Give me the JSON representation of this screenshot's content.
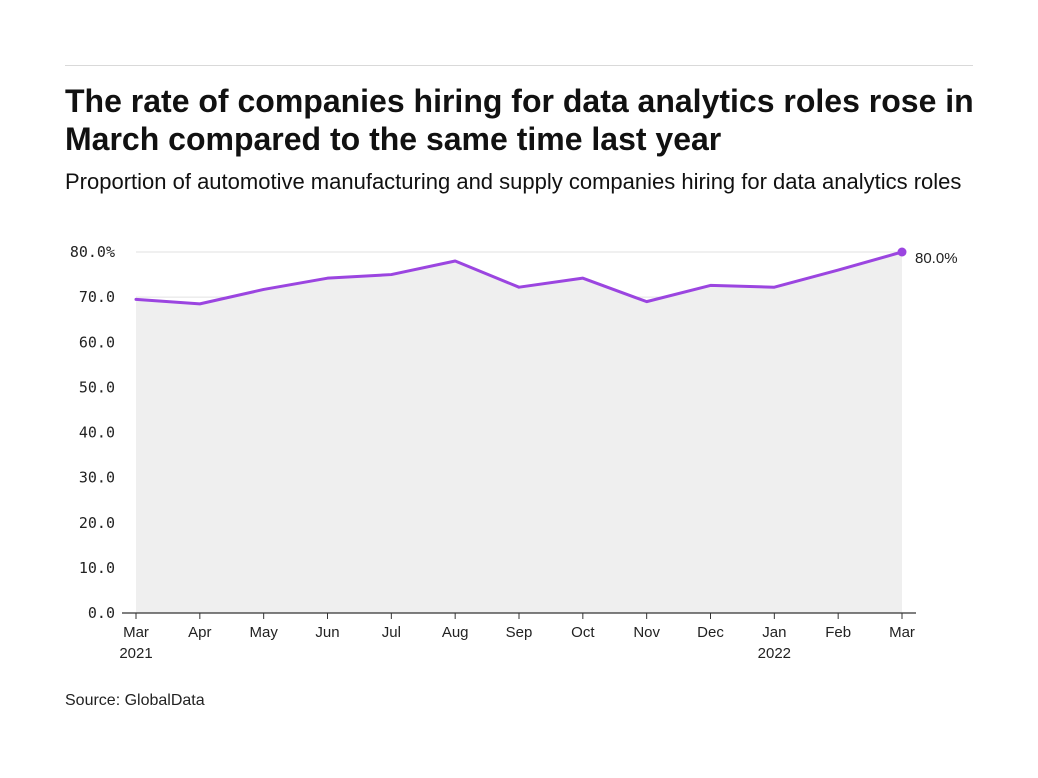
{
  "header": {
    "title": "The rate of companies hiring for data analytics roles rose in March compared to the same time last year",
    "subtitle": "Proportion of automotive manufacturing and supply companies hiring for data analytics roles"
  },
  "footer": {
    "source": "Source: GlobalData"
  },
  "chart_data": {
    "type": "area",
    "categories": [
      "Mar",
      "Apr",
      "May",
      "Jun",
      "Jul",
      "Aug",
      "Sep",
      "Oct",
      "Nov",
      "Dec",
      "Jan",
      "Feb",
      "Mar"
    ],
    "year_labels": [
      {
        "category_index": 0,
        "label": "2021"
      },
      {
        "category_index": 10,
        "label": "2022"
      }
    ],
    "series": [
      {
        "values": [
          69.5,
          68.5,
          71.7,
          74.2,
          75.0,
          78.0,
          72.2,
          74.2,
          69.0,
          72.6,
          72.2,
          76.0,
          80.0
        ]
      }
    ],
    "end_label": "80.0%",
    "y_ticks": [
      {
        "value": 0,
        "label": "0.0"
      },
      {
        "value": 10,
        "label": "10.0"
      },
      {
        "value": 20,
        "label": "20.0"
      },
      {
        "value": 30,
        "label": "30.0"
      },
      {
        "value": 40,
        "label": "40.0"
      },
      {
        "value": 50,
        "label": "50.0"
      },
      {
        "value": 60,
        "label": "60.0"
      },
      {
        "value": 70,
        "label": "70.0"
      },
      {
        "value": 80,
        "label": "80.0%"
      }
    ],
    "ylim": [
      0,
      80
    ],
    "grid": true,
    "colors": {
      "line": "#9b45e0",
      "area": "#efefef",
      "grid": "#e2e2e2",
      "axis": "#333333"
    }
  }
}
